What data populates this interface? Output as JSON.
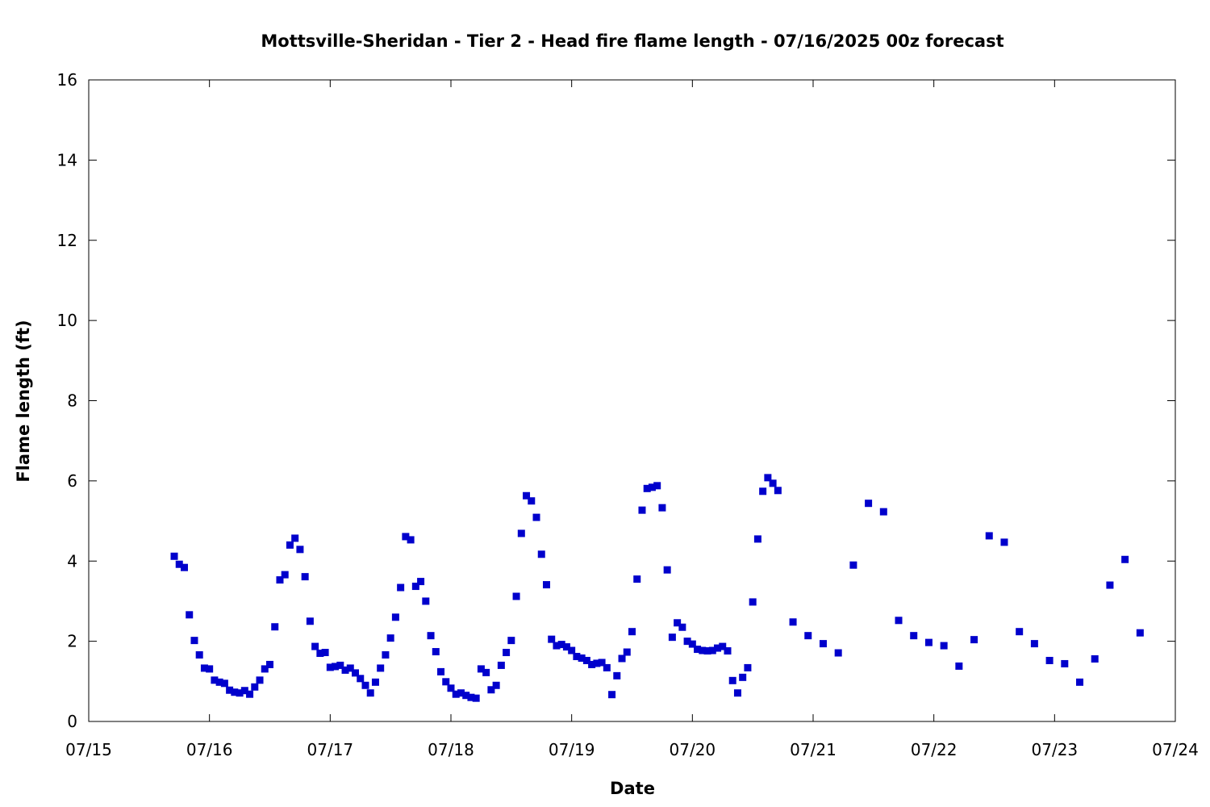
{
  "chart_data": {
    "type": "scatter",
    "title": "Mottsville-Sheridan - Tier 2 - Head fire flame length - 07/16/2025 00z forecast",
    "xlabel": "Date",
    "ylabel": "Flame length (ft)",
    "x_tick_labels": [
      "07/15",
      "07/16",
      "07/17",
      "07/18",
      "07/19",
      "07/20",
      "07/21",
      "07/22",
      "07/23",
      "07/24"
    ],
    "y_tick_labels": [
      "0",
      "2",
      "4",
      "6",
      "8",
      "10",
      "12",
      "14",
      "16"
    ],
    "xlim": [
      "07/15 00:00",
      "07/24 00:00"
    ],
    "ylim": [
      0,
      16
    ],
    "grid": false,
    "marker_color": "#0000cc",
    "series": [
      {
        "points": [
          [
            "07/15 17:00",
            4.12
          ],
          [
            "07/15 18:00",
            3.92
          ],
          [
            "07/15 19:00",
            3.84
          ],
          [
            "07/15 20:00",
            2.66
          ],
          [
            "07/15 21:00",
            2.02
          ],
          [
            "07/15 22:00",
            1.66
          ],
          [
            "07/15 23:00",
            1.33
          ],
          [
            "07/16 00:00",
            1.31
          ],
          [
            "07/16 01:00",
            1.03
          ],
          [
            "07/16 02:00",
            0.98
          ],
          [
            "07/16 03:00",
            0.95
          ],
          [
            "07/16 04:00",
            0.78
          ],
          [
            "07/16 05:00",
            0.73
          ],
          [
            "07/16 06:00",
            0.71
          ],
          [
            "07/16 07:00",
            0.77
          ],
          [
            "07/16 08:00",
            0.68
          ],
          [
            "07/16 09:00",
            0.86
          ],
          [
            "07/16 10:00",
            1.03
          ],
          [
            "07/16 11:00",
            1.31
          ],
          [
            "07/16 12:00",
            1.42
          ],
          [
            "07/16 13:00",
            2.36
          ],
          [
            "07/16 14:00",
            3.53
          ],
          [
            "07/16 15:00",
            3.66
          ],
          [
            "07/16 16:00",
            4.4
          ],
          [
            "07/16 17:00",
            4.57
          ],
          [
            "07/16 18:00",
            4.29
          ],
          [
            "07/16 19:00",
            3.61
          ],
          [
            "07/16 20:00",
            2.5
          ],
          [
            "07/16 21:00",
            1.87
          ],
          [
            "07/16 22:00",
            1.7
          ],
          [
            "07/16 23:00",
            1.72
          ],
          [
            "07/17 00:00",
            1.35
          ],
          [
            "07/17 01:00",
            1.37
          ],
          [
            "07/17 02:00",
            1.4
          ],
          [
            "07/17 03:00",
            1.28
          ],
          [
            "07/17 04:00",
            1.33
          ],
          [
            "07/17 05:00",
            1.21
          ],
          [
            "07/17 06:00",
            1.07
          ],
          [
            "07/17 07:00",
            0.9
          ],
          [
            "07/17 08:00",
            0.71
          ],
          [
            "07/17 09:00",
            0.98
          ],
          [
            "07/17 10:00",
            1.33
          ],
          [
            "07/17 11:00",
            1.66
          ],
          [
            "07/17 12:00",
            2.08
          ],
          [
            "07/17 13:00",
            2.6
          ],
          [
            "07/17 14:00",
            3.34
          ],
          [
            "07/17 15:00",
            4.61
          ],
          [
            "07/17 16:00",
            4.53
          ],
          [
            "07/17 17:00",
            3.37
          ],
          [
            "07/17 18:00",
            3.49
          ],
          [
            "07/17 19:00",
            3.0
          ],
          [
            "07/17 20:00",
            2.14
          ],
          [
            "07/17 21:00",
            1.74
          ],
          [
            "07/17 22:00",
            1.24
          ],
          [
            "07/17 23:00",
            0.99
          ],
          [
            "07/18 00:00",
            0.83
          ],
          [
            "07/18 01:00",
            0.68
          ],
          [
            "07/18 02:00",
            0.71
          ],
          [
            "07/18 03:00",
            0.65
          ],
          [
            "07/18 04:00",
            0.6
          ],
          [
            "07/18 05:00",
            0.58
          ],
          [
            "07/18 06:00",
            1.31
          ],
          [
            "07/18 07:00",
            1.22
          ],
          [
            "07/18 08:00",
            0.79
          ],
          [
            "07/18 09:00",
            0.9
          ],
          [
            "07/18 10:00",
            1.4
          ],
          [
            "07/18 11:00",
            1.72
          ],
          [
            "07/18 12:00",
            2.02
          ],
          [
            "07/18 13:00",
            3.12
          ],
          [
            "07/18 14:00",
            4.69
          ],
          [
            "07/18 15:00",
            5.63
          ],
          [
            "07/18 16:00",
            5.5
          ],
          [
            "07/18 17:00",
            5.09
          ],
          [
            "07/18 18:00",
            4.17
          ],
          [
            "07/18 19:00",
            3.41
          ],
          [
            "07/18 20:00",
            2.05
          ],
          [
            "07/18 21:00",
            1.89
          ],
          [
            "07/18 22:00",
            1.92
          ],
          [
            "07/18 23:00",
            1.86
          ],
          [
            "07/19 00:00",
            1.77
          ],
          [
            "07/19 01:00",
            1.62
          ],
          [
            "07/19 02:00",
            1.58
          ],
          [
            "07/19 03:00",
            1.52
          ],
          [
            "07/19 04:00",
            1.42
          ],
          [
            "07/19 05:00",
            1.45
          ],
          [
            "07/19 06:00",
            1.47
          ],
          [
            "07/19 07:00",
            1.34
          ],
          [
            "07/19 08:00",
            0.67
          ],
          [
            "07/19 09:00",
            1.14
          ],
          [
            "07/19 10:00",
            1.57
          ],
          [
            "07/19 11:00",
            1.73
          ],
          [
            "07/19 12:00",
            2.24
          ],
          [
            "07/19 13:00",
            3.55
          ],
          [
            "07/19 14:00",
            5.27
          ],
          [
            "07/19 15:00",
            5.81
          ],
          [
            "07/19 16:00",
            5.84
          ],
          [
            "07/19 17:00",
            5.88
          ],
          [
            "07/19 18:00",
            5.33
          ],
          [
            "07/19 19:00",
            3.78
          ],
          [
            "07/19 20:00",
            2.1
          ],
          [
            "07/19 21:00",
            2.46
          ],
          [
            "07/19 22:00",
            2.35
          ],
          [
            "07/19 23:00",
            2.0
          ],
          [
            "07/20 00:00",
            1.93
          ],
          [
            "07/20 01:00",
            1.8
          ],
          [
            "07/20 02:00",
            1.77
          ],
          [
            "07/20 03:00",
            1.76
          ],
          [
            "07/20 04:00",
            1.77
          ],
          [
            "07/20 05:00",
            1.83
          ],
          [
            "07/20 06:00",
            1.87
          ],
          [
            "07/20 07:00",
            1.76
          ],
          [
            "07/20 08:00",
            1.02
          ],
          [
            "07/20 09:00",
            0.71
          ],
          [
            "07/20 10:00",
            1.1
          ],
          [
            "07/20 11:00",
            1.34
          ],
          [
            "07/20 12:00",
            2.98
          ],
          [
            "07/20 13:00",
            4.55
          ],
          [
            "07/20 14:00",
            5.74
          ],
          [
            "07/20 15:00",
            6.08
          ],
          [
            "07/20 16:00",
            5.94
          ],
          [
            "07/20 17:00",
            5.76
          ],
          [
            "07/20 20:00",
            2.48
          ],
          [
            "07/20 23:00",
            2.14
          ],
          [
            "07/21 02:00",
            1.94
          ],
          [
            "07/21 05:00",
            1.71
          ],
          [
            "07/21 08:00",
            3.9
          ],
          [
            "07/21 11:00",
            5.44
          ],
          [
            "07/21 14:00",
            5.23
          ],
          [
            "07/21 17:00",
            2.52
          ],
          [
            "07/21 20:00",
            2.14
          ],
          [
            "07/21 23:00",
            1.97
          ],
          [
            "07/22 02:00",
            1.89
          ],
          [
            "07/22 05:00",
            1.38
          ],
          [
            "07/22 08:00",
            2.04
          ],
          [
            "07/22 11:00",
            4.63
          ],
          [
            "07/22 14:00",
            4.47
          ],
          [
            "07/22 17:00",
            2.24
          ],
          [
            "07/22 20:00",
            1.94
          ],
          [
            "07/22 23:00",
            1.52
          ],
          [
            "07/23 02:00",
            1.44
          ],
          [
            "07/23 05:00",
            0.98
          ],
          [
            "07/23 08:00",
            1.56
          ],
          [
            "07/23 11:00",
            3.4
          ],
          [
            "07/23 14:00",
            4.04
          ],
          [
            "07/23 17:00",
            2.21
          ]
        ]
      }
    ]
  }
}
